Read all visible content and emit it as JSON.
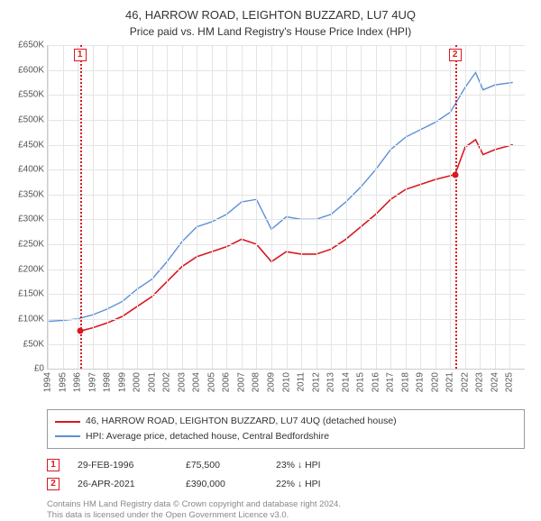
{
  "title": "46, HARROW ROAD, LEIGHTON BUZZARD, LU7 4UQ",
  "subtitle": "Price paid vs. HM Land Registry's House Price Index (HPI)",
  "chart": {
    "type": "line",
    "x_axis": {
      "min": 1994,
      "max": 2026,
      "ticks": [
        1994,
        1995,
        1996,
        1997,
        1998,
        1999,
        2000,
        2001,
        2002,
        2003,
        2004,
        2005,
        2006,
        2007,
        2008,
        2009,
        2010,
        2011,
        2012,
        2013,
        2014,
        2015,
        2016,
        2017,
        2018,
        2019,
        2020,
        2021,
        2022,
        2023,
        2024,
        2025
      ]
    },
    "y_axis": {
      "min": 0,
      "max": 650000,
      "tick_step": 50000,
      "labels": [
        "£0",
        "£50K",
        "£100K",
        "£150K",
        "£200K",
        "£250K",
        "£300K",
        "£350K",
        "£400K",
        "£450K",
        "£500K",
        "£550K",
        "£600K",
        "£650K"
      ]
    },
    "grid_color": "#e4e4e4",
    "background_color": "#ffffff",
    "series": [
      {
        "name": "property",
        "label": "46, HARROW ROAD, LEIGHTON BUZZARD, LU7 4UQ (detached house)",
        "color": "#d71920",
        "line_width": 1.6,
        "data": [
          [
            1996.16,
            75500
          ],
          [
            1997,
            82000
          ],
          [
            1998,
            92000
          ],
          [
            1999,
            105000
          ],
          [
            2000,
            125000
          ],
          [
            2001,
            145000
          ],
          [
            2002,
            175000
          ],
          [
            2003,
            205000
          ],
          [
            2004,
            225000
          ],
          [
            2005,
            235000
          ],
          [
            2006,
            245000
          ],
          [
            2007,
            260000
          ],
          [
            2008,
            250000
          ],
          [
            2009,
            215000
          ],
          [
            2010,
            235000
          ],
          [
            2011,
            230000
          ],
          [
            2012,
            230000
          ],
          [
            2013,
            240000
          ],
          [
            2014,
            260000
          ],
          [
            2015,
            285000
          ],
          [
            2016,
            310000
          ],
          [
            2017,
            340000
          ],
          [
            2018,
            360000
          ],
          [
            2019,
            370000
          ],
          [
            2020,
            380000
          ],
          [
            2021.32,
            390000
          ],
          [
            2022,
            445000
          ],
          [
            2022.7,
            460000
          ],
          [
            2023.2,
            430000
          ],
          [
            2024,
            440000
          ],
          [
            2025.2,
            450000
          ]
        ]
      },
      {
        "name": "hpi",
        "label": "HPI: Average price, detached house, Central Bedfordshire",
        "color": "#5b8fd6",
        "line_width": 1.4,
        "data": [
          [
            1994,
            95000
          ],
          [
            1995,
            97000
          ],
          [
            1996,
            100000
          ],
          [
            1997,
            108000
          ],
          [
            1998,
            120000
          ],
          [
            1999,
            135000
          ],
          [
            2000,
            160000
          ],
          [
            2001,
            180000
          ],
          [
            2002,
            215000
          ],
          [
            2003,
            255000
          ],
          [
            2004,
            285000
          ],
          [
            2005,
            295000
          ],
          [
            2006,
            310000
          ],
          [
            2007,
            335000
          ],
          [
            2008,
            340000
          ],
          [
            2009,
            280000
          ],
          [
            2010,
            305000
          ],
          [
            2011,
            300000
          ],
          [
            2012,
            300000
          ],
          [
            2013,
            310000
          ],
          [
            2014,
            335000
          ],
          [
            2015,
            365000
          ],
          [
            2016,
            400000
          ],
          [
            2017,
            440000
          ],
          [
            2018,
            465000
          ],
          [
            2019,
            480000
          ],
          [
            2020,
            495000
          ],
          [
            2021,
            515000
          ],
          [
            2022,
            565000
          ],
          [
            2022.7,
            595000
          ],
          [
            2023.2,
            560000
          ],
          [
            2024,
            570000
          ],
          [
            2025.2,
            575000
          ]
        ]
      }
    ],
    "reference_lines": [
      {
        "x": 1996.16,
        "color": "#d71920",
        "marker": "1"
      },
      {
        "x": 2021.32,
        "color": "#d71920",
        "marker": "2"
      }
    ],
    "sale_points": [
      {
        "x": 1996.16,
        "y": 75500,
        "color": "#d71920"
      },
      {
        "x": 2021.32,
        "y": 390000,
        "color": "#d71920"
      }
    ]
  },
  "legend": [
    {
      "color": "#d71920",
      "label": "46, HARROW ROAD, LEIGHTON BUZZARD, LU7 4UQ (detached house)"
    },
    {
      "color": "#5b8fd6",
      "label": "HPI: Average price, detached house, Central Bedfordshire"
    }
  ],
  "annotations": [
    {
      "marker": "1",
      "color": "#d71920",
      "date": "29-FEB-1996",
      "price": "£75,500",
      "comparison": "23% ↓ HPI"
    },
    {
      "marker": "2",
      "color": "#d71920",
      "date": "26-APR-2021",
      "price": "£390,000",
      "comparison": "22% ↓ HPI"
    }
  ],
  "footnote_line1": "Contains HM Land Registry data © Crown copyright and database right 2024.",
  "footnote_line2": "This data is licensed under the Open Government Licence v3.0."
}
